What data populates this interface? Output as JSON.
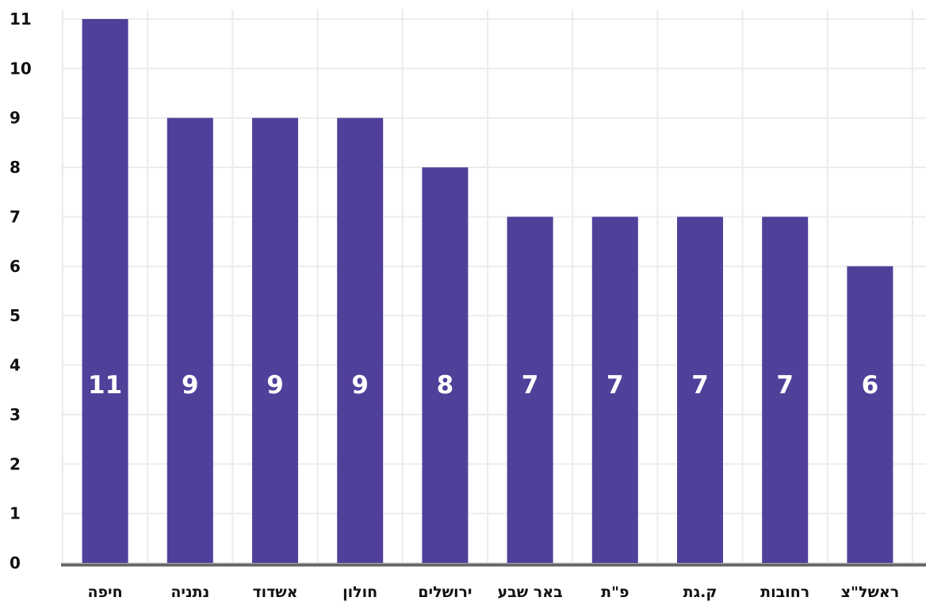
{
  "chart_data": {
    "type": "bar",
    "categories": [
      "חיפה",
      "נתניה",
      "אשדוד",
      "חולון",
      "ירושלים",
      "באר שבע",
      "פ\"ת",
      "ק.גת",
      "רחובות",
      "ראשל\"צ"
    ],
    "values": [
      11,
      9,
      9,
      9,
      8,
      7,
      7,
      7,
      7,
      6
    ],
    "data_labels": [
      "11",
      "9",
      "9",
      "9",
      "8",
      "7",
      "7",
      "7",
      "7",
      "6"
    ],
    "y_ticks": [
      "0",
      "1",
      "2",
      "3",
      "4",
      "5",
      "6",
      "7",
      "8",
      "9",
      "10",
      "11"
    ],
    "ylim": [
      0,
      11
    ],
    "grid": true,
    "legend": "none",
    "bar_color": "#51409a",
    "grid_color": "#ececec",
    "axis_color": "#666666",
    "label_color": "#ffffff"
  }
}
